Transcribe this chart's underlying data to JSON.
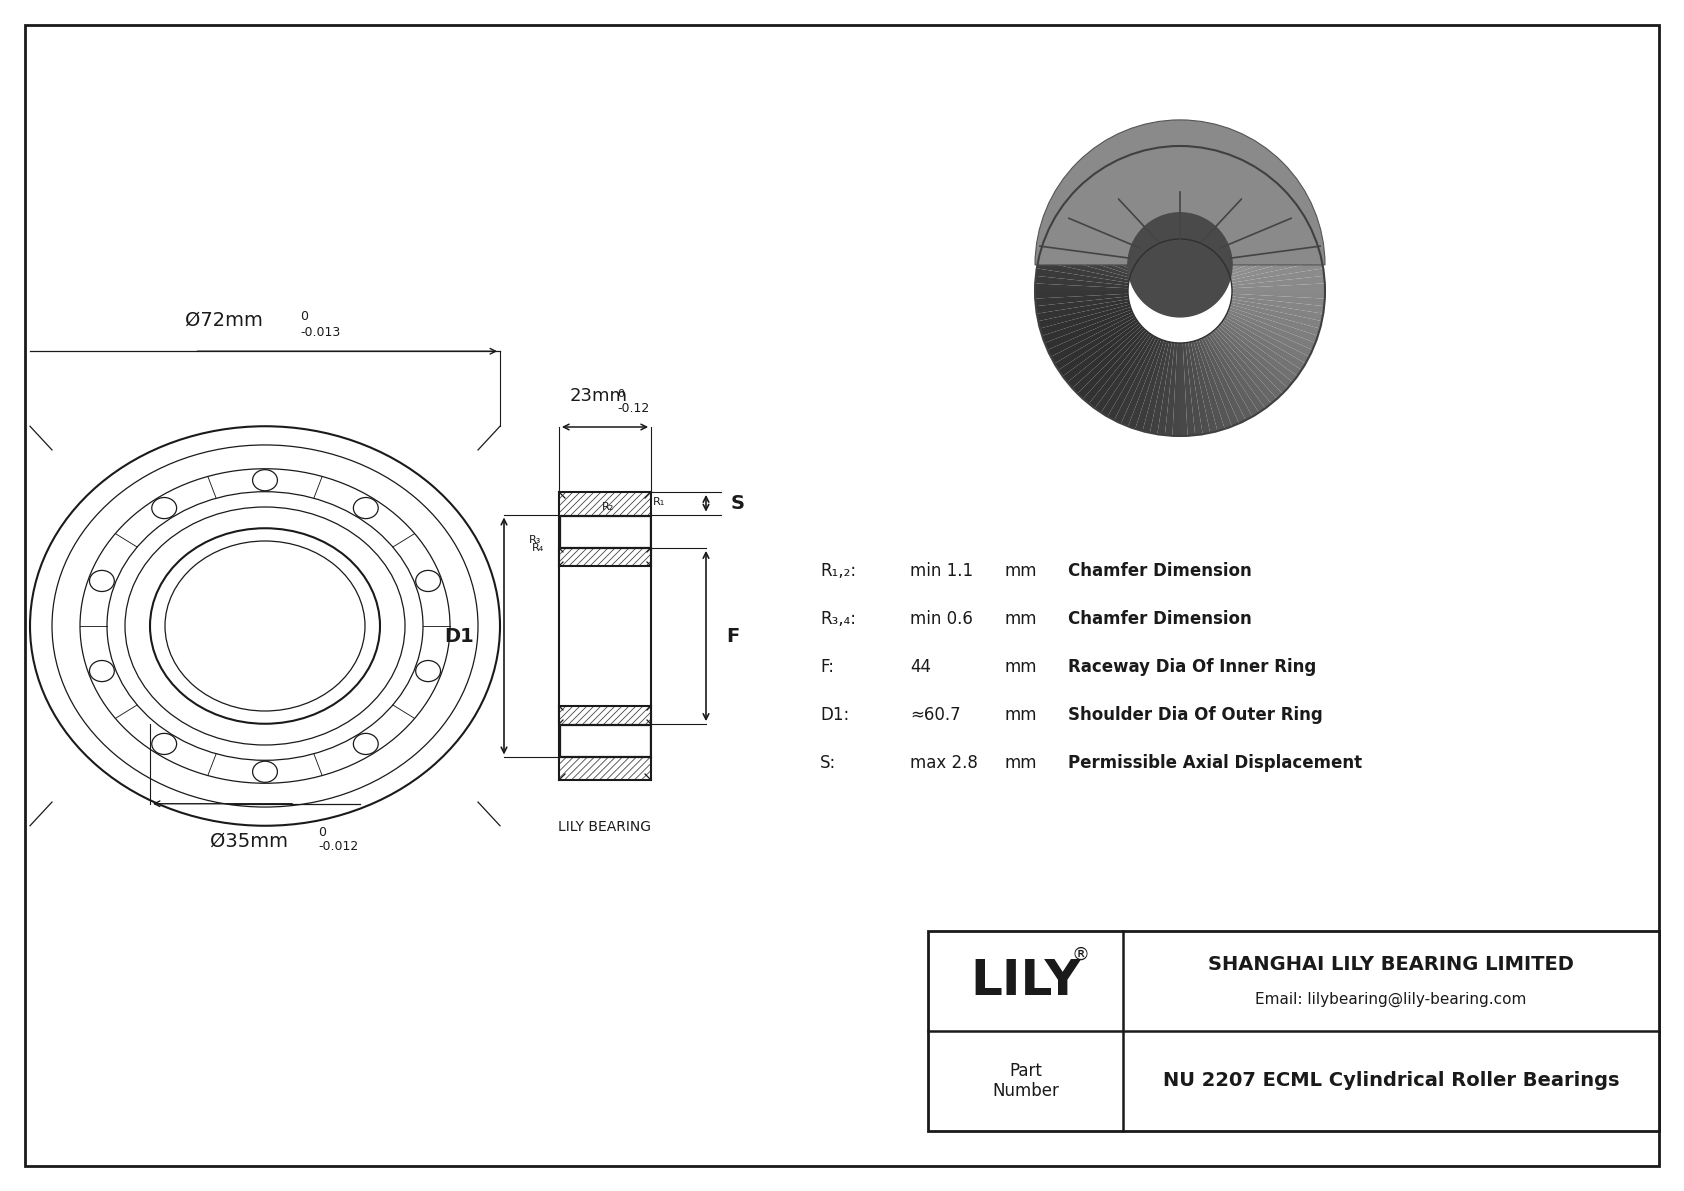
{
  "bg_color": "#ffffff",
  "drawing_color": "#1a1a1a",
  "company": "SHANGHAI LILY BEARING LIMITED",
  "email": "Email: lilybearing@lily-bearing.com",
  "part_number_label": "Part\nNumber",
  "part_number": "NU 2207 ECML Cylindrical Roller Bearings",
  "lily_text": "LILY",
  "lily_registered": "®",
  "watermark": "LILY BEARING",
  "dim_outer": "Ø72mm",
  "dim_outer_tol_top": "0",
  "dim_outer_tol_bot": "-0.013",
  "dim_inner": "Ø35mm",
  "dim_inner_tol_top": "0",
  "dim_inner_tol_bot": "-0.012",
  "dim_width": "23mm",
  "dim_width_tol_top": "0",
  "dim_width_tol_bot": "-0.12",
  "label_D1": "D1",
  "label_F": "F",
  "label_S": "S",
  "label_R1": "R₁",
  "label_R2": "R₂",
  "label_R3": "R₃",
  "label_R4": "R₄",
  "spec_R12_label": "R₁,₂:",
  "spec_R12_val": "min 1.1",
  "spec_R12_unit": "mm",
  "spec_R12_desc": "Chamfer Dimension",
  "spec_R34_label": "R₃,₄:",
  "spec_R34_val": "min 0.6",
  "spec_R34_unit": "mm",
  "spec_R34_desc": "Chamfer Dimension",
  "spec_F_label": "F:",
  "spec_F_val": "44",
  "spec_F_unit": "mm",
  "spec_F_desc": "Raceway Dia Of Inner Ring",
  "spec_D1_label": "D1:",
  "spec_D1_val": "≈60.7",
  "spec_D1_unit": "mm",
  "spec_D1_desc": "Shoulder Dia Of Outer Ring",
  "spec_S_label": "S:",
  "spec_S_val": "max 2.8",
  "spec_S_unit": "mm",
  "spec_S_desc": "Permissible Axial Displacement"
}
